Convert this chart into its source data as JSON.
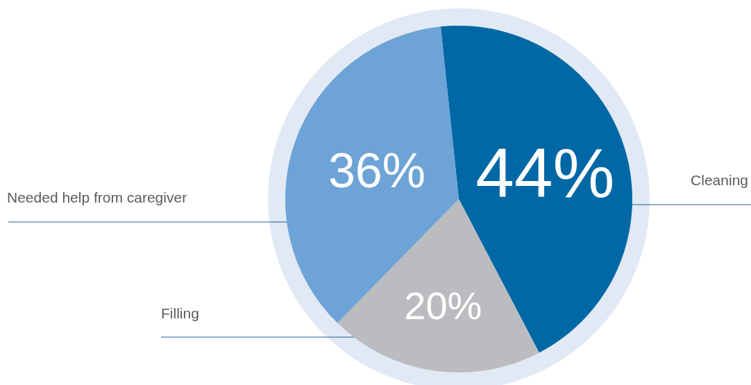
{
  "chart_data": {
    "type": "pie",
    "categories": [
      "Cleaning",
      "Filling",
      "Needed help from caregiver"
    ],
    "values": [
      44,
      20,
      36
    ],
    "value_labels": [
      "44%",
      "20%",
      "36%"
    ],
    "colors": [
      "#0068a5",
      "#bbbcc0",
      "#6da3d6"
    ]
  }
}
